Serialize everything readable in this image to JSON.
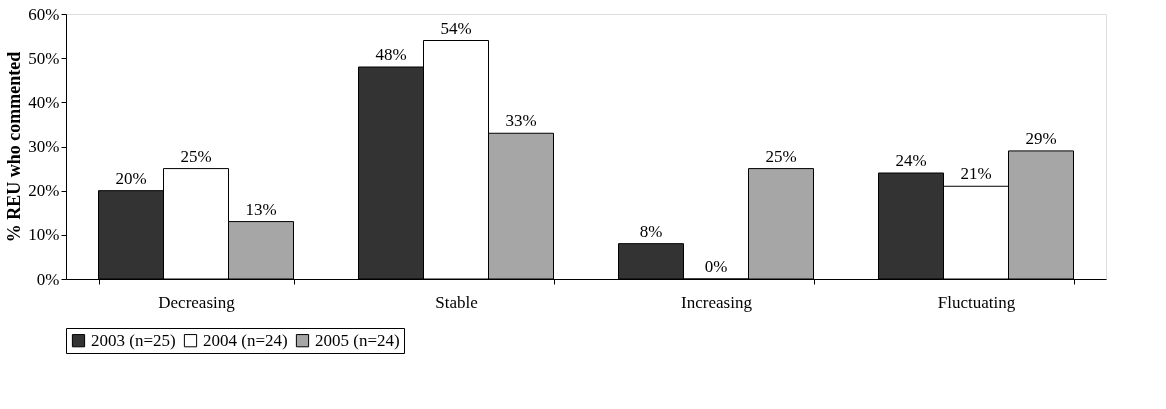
{
  "chart_data": {
    "type": "bar",
    "ylabel": "% REU who commented",
    "categories": [
      "Decreasing",
      "Stable",
      "Increasing",
      "Fluctuating"
    ],
    "series": [
      {
        "name": "2003 (n=25)",
        "color": "#333333",
        "values": [
          20,
          48,
          8,
          24
        ],
        "value_labels": [
          "20%",
          "48%",
          "8%",
          "24%"
        ]
      },
      {
        "name": "2004 (n=24)",
        "color": "#ffffff",
        "values": [
          25,
          54,
          0,
          21
        ],
        "value_labels": [
          "25%",
          "54%",
          "0%",
          "21%"
        ]
      },
      {
        "name": "2005 (n=24)",
        "color": "#a6a6a6",
        "values": [
          13,
          33,
          25,
          29
        ],
        "value_labels": [
          "13%",
          "33%",
          "25%",
          "29%"
        ]
      }
    ],
    "ylim": [
      0,
      60
    ],
    "yticks": [
      {
        "value": 0,
        "label": "0%"
      },
      {
        "value": 10,
        "label": "10%"
      },
      {
        "value": 20,
        "label": "20%"
      },
      {
        "value": 30,
        "label": "30%"
      },
      {
        "value": 40,
        "label": "40%"
      },
      {
        "value": 50,
        "label": "50%"
      },
      {
        "value": 60,
        "label": "60%"
      }
    ],
    "grid": false,
    "legend": "bottom"
  }
}
